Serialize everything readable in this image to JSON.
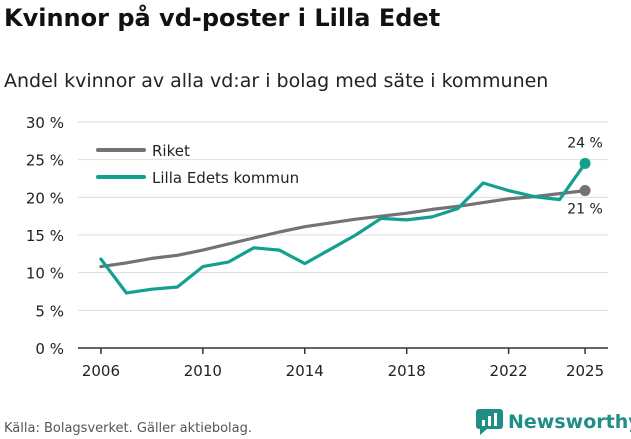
{
  "header": {
    "title": "Kvinnor på vd-poster i Lilla Edet",
    "subtitle": "Andel kvinnor av alla vd:ar i bolag med säte i kommunen"
  },
  "footer": {
    "source": "Källa: Bolagsverket. Gäller aktiebolag."
  },
  "brand": {
    "name": "Newsworthy"
  },
  "colors": {
    "riket": "#737276",
    "lilla_edet": "#12a08f",
    "grid": "#dddddd",
    "axis": "#333333"
  },
  "chart_data": {
    "type": "line",
    "title": "Kvinnor på vd-poster i Lilla Edet",
    "subtitle": "Andel kvinnor av alla vd:ar i bolag med säte i kommunen",
    "xlabel": "",
    "ylabel": "",
    "x": [
      2006,
      2007,
      2008,
      2009,
      2010,
      2011,
      2012,
      2013,
      2014,
      2015,
      2016,
      2017,
      2018,
      2019,
      2020,
      2021,
      2022,
      2023,
      2024,
      2025
    ],
    "xlim": [
      2005.1,
      2025.9
    ],
    "ylim": [
      0,
      30
    ],
    "x_ticks": [
      2006,
      2010,
      2014,
      2018,
      2022,
      2025
    ],
    "y_ticks": [
      0,
      5,
      10,
      15,
      20,
      25,
      30
    ],
    "y_tick_labels": [
      "0 %",
      "5 %",
      "10 %",
      "15 %",
      "20 %",
      "25 %",
      "30 %"
    ],
    "grid": true,
    "legend_position": "top-left",
    "series": [
      {
        "name": "Riket",
        "color": "#737276",
        "values": [
          10.8,
          11.3,
          11.9,
          12.3,
          13.0,
          13.8,
          14.6,
          15.4,
          16.1,
          16.6,
          17.1,
          17.5,
          17.9,
          18.4,
          18.8,
          19.3,
          19.8,
          20.1,
          20.5,
          20.9
        ],
        "end_label": "21 %"
      },
      {
        "name": "Lilla Edets kommun",
        "color": "#12a08f",
        "values": [
          11.8,
          7.3,
          7.8,
          8.1,
          10.8,
          11.4,
          13.3,
          13.0,
          11.2,
          13.1,
          15.0,
          17.2,
          17.0,
          17.4,
          18.5,
          21.9,
          20.9,
          20.1,
          19.7,
          24.5
        ],
        "end_label": "24 %"
      }
    ]
  }
}
